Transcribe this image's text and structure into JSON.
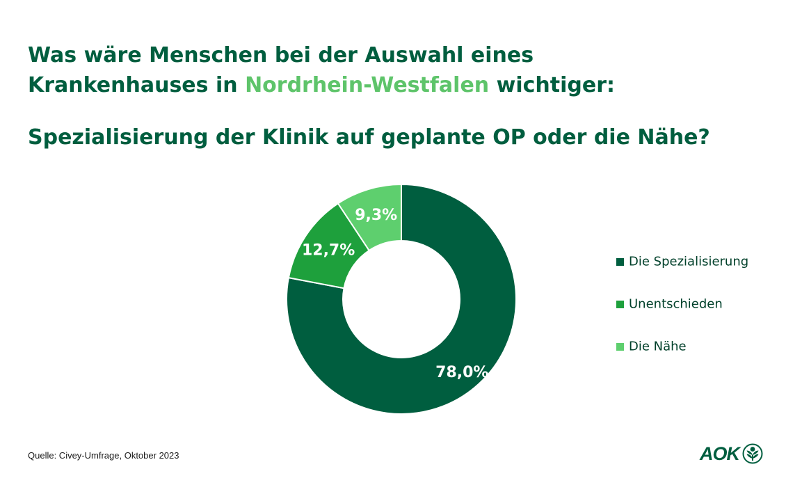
{
  "header": {
    "title_line1": "Was wäre Menschen bei der Auswahl eines",
    "title_line2_pre": "Krankenhauses in",
    "title_line2_highlight": "Nordrhein-Westfalen",
    "title_line2_post": "wichtiger:",
    "subtitle": "Spezialisierung der Klinik auf geplante OP oder die Nähe?"
  },
  "chart_data": {
    "type": "pie",
    "variant": "donut",
    "categories": [
      "Die Spezialisierung",
      "Unentschieden",
      "Die Nähe"
    ],
    "values": [
      78.0,
      12.7,
      9.3
    ],
    "data_labels": [
      "78,0%",
      "12,7%",
      "9,3%"
    ],
    "colors": [
      "#005e3f",
      "#1ea03c",
      "#5ecf6e"
    ],
    "legend_position": "right"
  },
  "footer": {
    "source": "Quelle: Civey-Umfrage,  Oktober 2023",
    "logo_text": "AOK"
  },
  "icons": {
    "logo": "aok-tree-icon"
  }
}
